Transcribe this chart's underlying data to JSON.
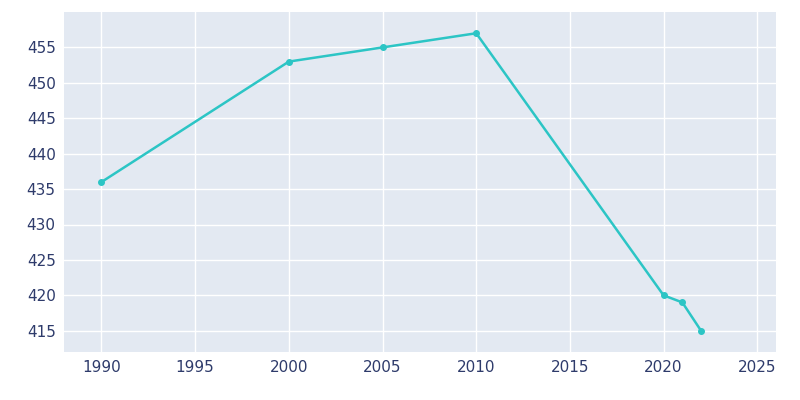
{
  "years": [
    1990,
    2000,
    2005,
    2010,
    2020,
    2021,
    2022
  ],
  "population": [
    436,
    453,
    455,
    457,
    420,
    419,
    415
  ],
  "line_color": "#2CC5C5",
  "marker_color": "#2CC5C5",
  "plot_bg_color": "#E3E9F2",
  "fig_bg_color": "#FFFFFF",
  "grid_color": "#FFFFFF",
  "text_color": "#2E3B6B",
  "xlim": [
    1988,
    2026
  ],
  "ylim": [
    412,
    460
  ],
  "xticks": [
    1990,
    1995,
    2000,
    2005,
    2010,
    2015,
    2020,
    2025
  ],
  "yticks": [
    415,
    420,
    425,
    430,
    435,
    440,
    445,
    450,
    455
  ],
  "figsize": [
    8.0,
    4.0
  ],
  "dpi": 100
}
